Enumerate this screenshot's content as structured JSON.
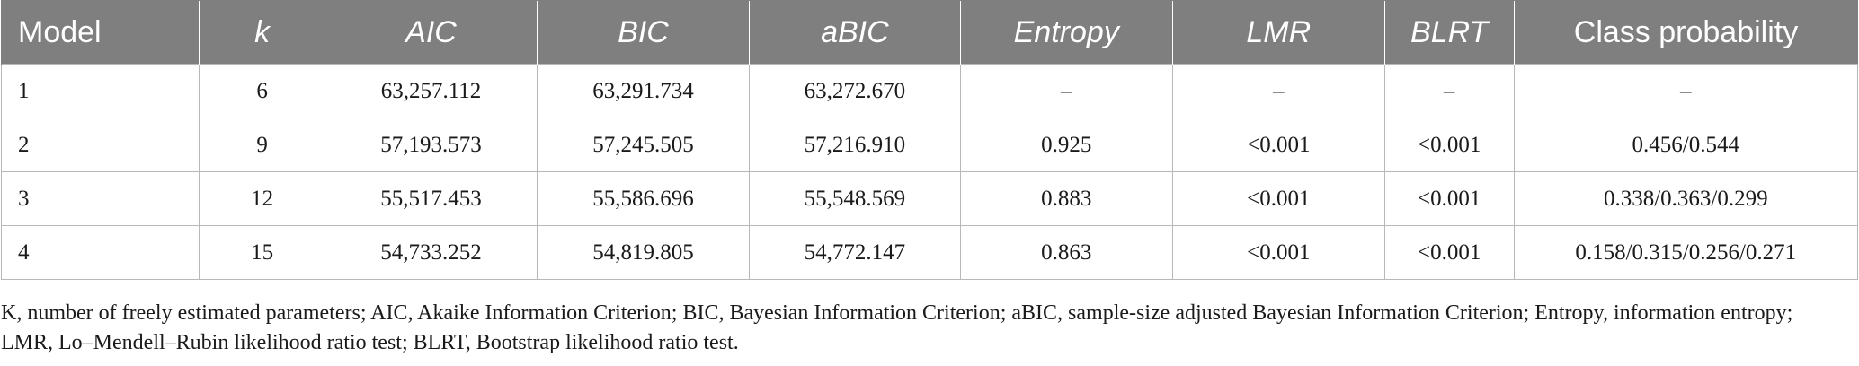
{
  "table": {
    "columns": [
      {
        "label": "Model",
        "italic": false
      },
      {
        "label": "k",
        "italic": true
      },
      {
        "label": "AIC",
        "italic": true
      },
      {
        "label": "BIC",
        "italic": true
      },
      {
        "label": "aBIC",
        "italic": true
      },
      {
        "label": "Entropy",
        "italic": true
      },
      {
        "label": "LMR",
        "italic": true
      },
      {
        "label": "BLRT",
        "italic": true
      },
      {
        "label": "Class probability",
        "italic": false
      }
    ],
    "rows": [
      [
        "1",
        "6",
        "63,257.112",
        "63,291.734",
        "63,272.670",
        "–",
        "–",
        "–",
        "–"
      ],
      [
        "2",
        "9",
        "57,193.573",
        "57,245.505",
        "57,216.910",
        "0.925",
        "<0.001",
        "<0.001",
        "0.456/0.544"
      ],
      [
        "3",
        "12",
        "55,517.453",
        "55,586.696",
        "55,548.569",
        "0.883",
        "<0.001",
        "<0.001",
        "0.338/0.363/0.299"
      ],
      [
        "4",
        "15",
        "54,733.252",
        "54,819.805",
        "54,772.147",
        "0.863",
        "<0.001",
        "<0.001",
        "0.158/0.315/0.256/0.271"
      ]
    ]
  },
  "footnote": "K, number of freely estimated parameters; AIC, Akaike Information Criterion; BIC, Bayesian Information Criterion; aBIC, sample-size adjusted Bayesian Information Criterion; Entropy, information entropy; LMR, Lo–Mendell–Rubin likelihood ratio test; BLRT, Bootstrap likelihood ratio test.",
  "colors": {
    "header_bg": "#7f7f7f",
    "header_text": "#ffffff",
    "grid": "#b8b8b8"
  }
}
